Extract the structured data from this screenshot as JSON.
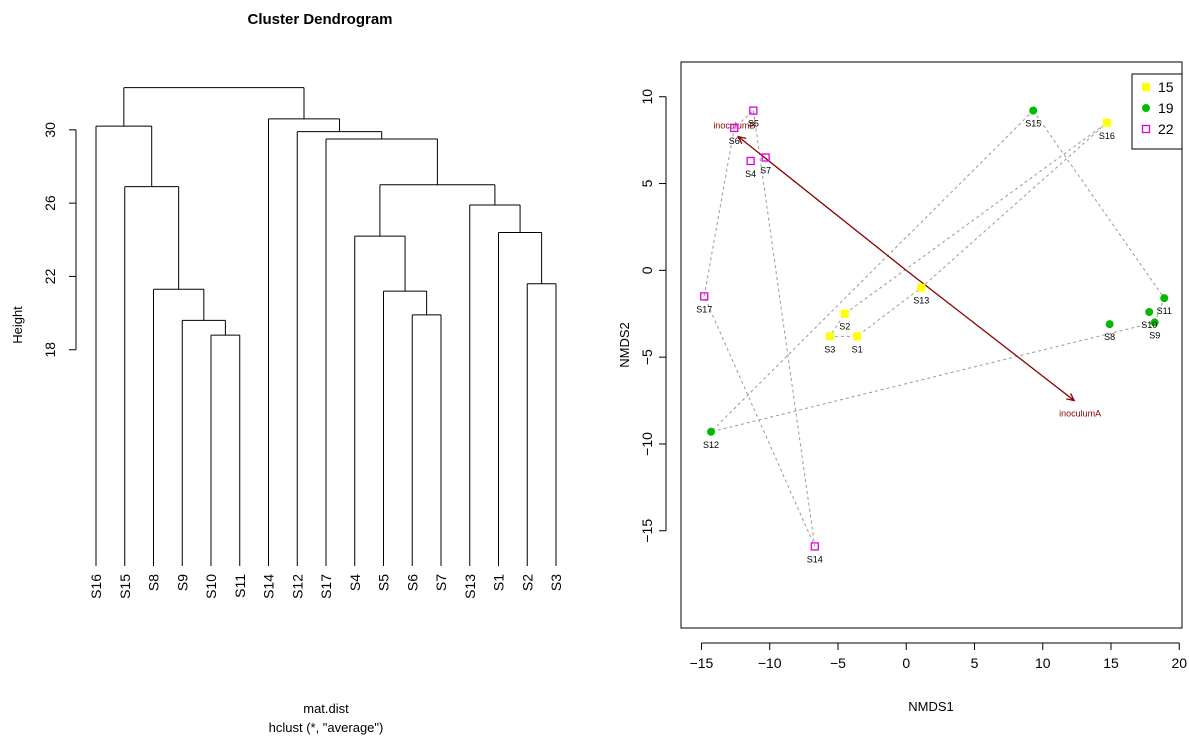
{
  "chart_data": [
    {
      "type": "dendrogram",
      "title": "Cluster Dendrogram",
      "ylabel": "Height",
      "xlabel": "mat.dist",
      "sub": "hclust (*, \"average\")",
      "y_ticks": [
        18,
        22,
        26,
        30
      ],
      "ylim": [
        6.2,
        32.5
      ],
      "leaves": [
        "S16",
        "S15",
        "S8",
        "S9",
        "S10",
        "S11",
        "S14",
        "S12",
        "S17",
        "S4",
        "S5",
        "S6",
        "S7",
        "S13",
        "S1",
        "S2",
        "S3"
      ],
      "merges": [
        {
          "left": [
            "S10"
          ],
          "right": [
            "S11"
          ],
          "height": 18.8
        },
        {
          "left": [
            "S9"
          ],
          "right": [
            "S10",
            "S11"
          ],
          "height": 19.6
        },
        {
          "left": [
            "S8"
          ],
          "right": [
            "S9",
            "S10",
            "S11"
          ],
          "height": 21.3
        },
        {
          "left": [
            "S15"
          ],
          "right": [
            "S8",
            "S9",
            "S10",
            "S11"
          ],
          "height": 26.9
        },
        {
          "left": [
            "S16"
          ],
          "right": [
            "S15",
            "S8",
            "S9",
            "S10",
            "S11"
          ],
          "height": 30.2
        },
        {
          "left": [
            "S6"
          ],
          "right": [
            "S7"
          ],
          "height": 19.9
        },
        {
          "left": [
            "S5"
          ],
          "right": [
            "S6",
            "S7"
          ],
          "height": 21.2
        },
        {
          "left": [
            "S4"
          ],
          "right": [
            "S5",
            "S6",
            "S7"
          ],
          "height": 24.2
        },
        {
          "left": [
            "S2"
          ],
          "right": [
            "S3"
          ],
          "height": 21.6
        },
        {
          "left": [
            "S1"
          ],
          "right": [
            "S2",
            "S3"
          ],
          "height": 24.4
        },
        {
          "left": [
            "S13"
          ],
          "right": [
            "S1",
            "S2",
            "S3"
          ],
          "height": 25.9
        },
        {
          "left": [
            "S4",
            "S5",
            "S6",
            "S7"
          ],
          "right": [
            "S13",
            "S1",
            "S2",
            "S3"
          ],
          "height": 27.0
        },
        {
          "left": [
            "S17"
          ],
          "right": [
            "S4",
            "S5",
            "S6",
            "S7",
            "S13",
            "S1",
            "S2",
            "S3"
          ],
          "height": 29.5
        },
        {
          "left": [
            "S12"
          ],
          "right": [
            "S17",
            "S4",
            "S5",
            "S6",
            "S7",
            "S13",
            "S1",
            "S2",
            "S3"
          ],
          "height": 29.9
        },
        {
          "left": [
            "S14"
          ],
          "right": [
            "S12",
            "S17",
            "S4",
            "S5",
            "S6",
            "S7",
            "S13",
            "S1",
            "S2",
            "S3"
          ],
          "height": 30.6
        },
        {
          "left": [
            "S16",
            "S15",
            "S8",
            "S9",
            "S10",
            "S11"
          ],
          "right": [
            "S14",
            "S12",
            "S17",
            "S4",
            "S5",
            "S6",
            "S7",
            "S13",
            "S1",
            "S2",
            "S3"
          ],
          "height": 32.3
        }
      ]
    },
    {
      "type": "scatter",
      "xlabel": "NMDS1",
      "ylabel": "NMDS2",
      "xlim": [
        -16.5,
        20.2
      ],
      "ylim": [
        -20.6,
        12.0
      ],
      "x_ticks": [
        -15,
        -10,
        -5,
        0,
        5,
        10,
        15,
        20
      ],
      "y_ticks": [
        -15,
        -10,
        -5,
        0,
        5,
        10
      ],
      "legend": {
        "position": "top-right",
        "entries": [
          {
            "label": "15",
            "shape": "filled-square",
            "color": "#ffff00"
          },
          {
            "label": "19",
            "shape": "filled-circle",
            "color": "#00bb00"
          },
          {
            "label": "22",
            "shape": "open-square",
            "color": "#dd00dd"
          }
        ]
      },
      "points": [
        {
          "name": "S1",
          "x": -3.6,
          "y": -3.8,
          "group": "15"
        },
        {
          "name": "S2",
          "x": -4.5,
          "y": -2.5,
          "group": "15"
        },
        {
          "name": "S3",
          "x": -5.6,
          "y": -3.8,
          "group": "15"
        },
        {
          "name": "S13",
          "x": 1.1,
          "y": -1.0,
          "group": "15"
        },
        {
          "name": "S16",
          "x": 14.7,
          "y": 8.5,
          "group": "15"
        },
        {
          "name": "S8",
          "x": 14.9,
          "y": -3.1,
          "group": "19"
        },
        {
          "name": "S9",
          "x": 18.2,
          "y": -3.0,
          "group": "19"
        },
        {
          "name": "S10",
          "x": 17.8,
          "y": -2.4,
          "group": "19"
        },
        {
          "name": "S11",
          "x": 18.9,
          "y": -1.6,
          "group": "19"
        },
        {
          "name": "S12",
          "x": -14.3,
          "y": -9.3,
          "group": "19"
        },
        {
          "name": "S15",
          "x": 9.3,
          "y": 9.2,
          "group": "19"
        },
        {
          "name": "S4",
          "x": -11.4,
          "y": 6.3,
          "group": "22"
        },
        {
          "name": "S5",
          "x": -11.2,
          "y": 9.2,
          "group": "22"
        },
        {
          "name": "S6",
          "x": -12.6,
          "y": 8.2,
          "group": "22"
        },
        {
          "name": "S7",
          "x": -10.3,
          "y": 6.5,
          "group": "22"
        },
        {
          "name": "S14",
          "x": -6.7,
          "y": -15.9,
          "group": "22"
        },
        {
          "name": "S17",
          "x": -14.8,
          "y": -1.5,
          "group": "22"
        }
      ],
      "hulls": [
        [
          "S16",
          "S13",
          "S1",
          "S3",
          "S2",
          "S16"
        ],
        [
          "S15",
          "S11",
          "S9",
          "S12",
          "S15"
        ],
        [
          "S5",
          "S14",
          "S17",
          "S6",
          "S5"
        ]
      ],
      "arrows": [
        {
          "label": "inoculumA",
          "x": 12.3,
          "y": -7.5
        },
        {
          "label": "inoculumB",
          "x": -12.3,
          "y": 7.7
        }
      ]
    }
  ]
}
